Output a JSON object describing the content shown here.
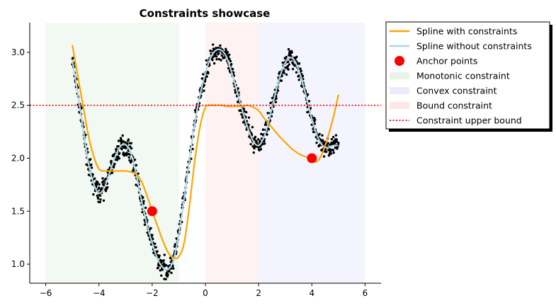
{
  "chart_data": {
    "type": "line",
    "title": "Constraints showcase",
    "xlabel": "",
    "ylabel": "",
    "xlim": [
      -6.6,
      6.6
    ],
    "ylim": [
      0.82,
      3.28
    ],
    "xticks": [
      -6,
      -4,
      -2,
      0,
      2,
      4,
      6
    ],
    "yticks": [
      1.0,
      1.5,
      2.0,
      2.5,
      3.0
    ],
    "xtick_labels": [
      "−6",
      "−4",
      "−2",
      "0",
      "2",
      "4",
      "6"
    ],
    "ytick_labels": [
      "1.0",
      "1.5",
      "2.0",
      "2.5",
      "3.0"
    ],
    "grid": false,
    "legend_position": "outside upper-right",
    "regions": [
      {
        "name": "Monotonic constraint",
        "x": [
          -6,
          -1
        ],
        "color": "#e8f3e8"
      },
      {
        "name": "Bound constraint",
        "x": [
          0,
          2
        ],
        "color": "#fde8e8"
      },
      {
        "name": "Convex constraint",
        "x": [
          2,
          6
        ],
        "color": "#ebebfd"
      }
    ],
    "series": [
      {
        "name": "Spline with constraints",
        "color": "#ffa500",
        "x": [
          -5.0,
          -4.8,
          -4.6,
          -4.4,
          -4.2,
          -4.0,
          -3.8,
          -3.6,
          -3.4,
          -3.2,
          -3.0,
          -2.8,
          -2.6,
          -2.4,
          -2.2,
          -2.0,
          -1.8,
          -1.6,
          -1.4,
          -1.2,
          -1.0,
          -0.8,
          -0.6,
          -0.4,
          -0.2,
          0.0,
          0.2,
          0.4,
          0.6,
          0.8,
          1.0,
          1.2,
          1.4,
          1.6,
          1.8,
          2.0,
          2.2,
          2.4,
          2.6,
          2.8,
          3.0,
          3.2,
          3.4,
          3.6,
          3.8,
          4.0,
          4.2,
          4.4,
          4.6,
          4.8,
          5.0
        ],
        "y": [
          3.07,
          2.78,
          2.5,
          2.22,
          2.02,
          1.9,
          1.88,
          1.88,
          1.88,
          1.88,
          1.88,
          1.87,
          1.85,
          1.78,
          1.65,
          1.5,
          1.36,
          1.22,
          1.11,
          1.06,
          1.07,
          1.2,
          1.55,
          1.98,
          2.3,
          2.48,
          2.5,
          2.5,
          2.5,
          2.49,
          2.49,
          2.49,
          2.49,
          2.5,
          2.48,
          2.45,
          2.38,
          2.32,
          2.26,
          2.2,
          2.15,
          2.1,
          2.06,
          2.03,
          2.01,
          1.98,
          1.97,
          2.05,
          2.2,
          2.38,
          2.6
        ]
      },
      {
        "name": "Spline without constraints",
        "color": "#add8e6",
        "x": [
          -5.0,
          -4.8,
          -4.6,
          -4.4,
          -4.2,
          -4.0,
          -3.8,
          -3.6,
          -3.4,
          -3.2,
          -3.0,
          -2.8,
          -2.6,
          -2.4,
          -2.2,
          -2.0,
          -1.8,
          -1.6,
          -1.4,
          -1.2,
          -1.0,
          -0.8,
          -0.6,
          -0.4,
          -0.2,
          0.0,
          0.2,
          0.4,
          0.6,
          0.8,
          1.0,
          1.2,
          1.4,
          1.6,
          1.8,
          2.0,
          2.2,
          2.4,
          2.6,
          2.8,
          3.0,
          3.2,
          3.4,
          3.6,
          3.8,
          4.0,
          4.2,
          4.4,
          4.6,
          4.8,
          5.0
        ],
        "y": [
          2.93,
          2.62,
          2.28,
          1.96,
          1.76,
          1.67,
          1.72,
          1.86,
          2.01,
          2.11,
          2.13,
          2.05,
          1.85,
          1.6,
          1.38,
          1.2,
          1.05,
          0.97,
          0.95,
          1.04,
          1.28,
          1.62,
          1.98,
          2.33,
          2.6,
          2.8,
          2.95,
          3.02,
          3.02,
          2.95,
          2.8,
          2.62,
          2.44,
          2.28,
          2.16,
          2.12,
          2.2,
          2.37,
          2.58,
          2.77,
          2.9,
          2.95,
          2.9,
          2.76,
          2.57,
          2.37,
          2.21,
          2.12,
          2.1,
          2.12,
          2.12
        ]
      }
    ],
    "anchor_points": {
      "name": "Anchor points",
      "color": "#ff0000",
      "x": [
        -2.0,
        4.0
      ],
      "y": [
        1.5,
        2.0
      ]
    },
    "upper_bound": {
      "name": "Constraint upper bound",
      "value": 2.5,
      "color": "#ff0000",
      "style": "dotted"
    },
    "data_points": {
      "color": "#000000",
      "x_range": [
        -5.0,
        5.0
      ],
      "count": 1000
    }
  }
}
